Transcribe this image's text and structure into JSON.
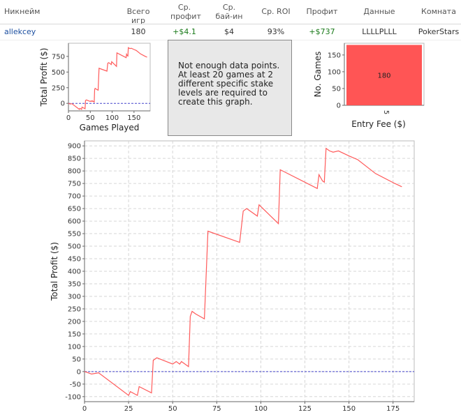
{
  "table": {
    "headers": [
      "Никнейм",
      "Всего игр",
      "Ср. профит",
      "Ср. бай-ин",
      "Ср. ROI",
      "Профит",
      "Данные",
      "Комната"
    ],
    "row": {
      "nickname": "allekcey",
      "total_games": "180",
      "avg_profit": "+$4.1",
      "avg_buyin": "$4",
      "avg_roi": "93%",
      "profit": "+$737",
      "data": "LLLLPLLL",
      "room": "PokerStars"
    }
  },
  "message": "Not enough data points. At least 20 games at 2 different specific stake levels are required to create this graph.",
  "colors": {
    "line": "#ff5a5a",
    "bar": "#ff5555",
    "zero_line": "#4444cc",
    "grid": "#d6d6d6"
  },
  "chart_data": [
    {
      "type": "line",
      "xlabel": "Games Played",
      "ylabel": "Total Profit ($)",
      "xlim": [
        0,
        187
      ],
      "ylim": [
        -120,
        960
      ],
      "xticks": [
        0,
        50,
        100,
        150
      ],
      "yticks": [
        0,
        250,
        500,
        750
      ],
      "zero_line": true,
      "series": [
        {
          "x": [
            0,
            4,
            8,
            25,
            26,
            30,
            31,
            38,
            39,
            41,
            50,
            52,
            54,
            55,
            59,
            60,
            61,
            63,
            68,
            70,
            88,
            90,
            92,
            98,
            99,
            110,
            111,
            132,
            133,
            135,
            136,
            137,
            139,
            141,
            144,
            150,
            155,
            165,
            176,
            180
          ],
          "y": [
            0,
            -10,
            -5,
            -95,
            -80,
            -95,
            -60,
            -85,
            45,
            55,
            30,
            40,
            30,
            40,
            20,
            220,
            240,
            230,
            210,
            560,
            515,
            640,
            650,
            620,
            665,
            590,
            805,
            730,
            785,
            760,
            755,
            890,
            880,
            875,
            880,
            860,
            845,
            790,
            750,
            737
          ]
        }
      ]
    },
    {
      "type": "bar",
      "xlabel": "Entry Fee ($)",
      "ylabel": "No. Games",
      "categories": [
        "5"
      ],
      "values": [
        180
      ],
      "data_labels": [
        "180"
      ],
      "ylim": [
        0,
        185
      ],
      "yticks": [
        0,
        50,
        100,
        150
      ]
    },
    {
      "type": "line",
      "xlabel": "",
      "ylabel": "Total Profit ($)",
      "xlim": [
        0,
        187
      ],
      "ylim": [
        -120,
        920
      ],
      "xticks": [
        0,
        25,
        50,
        75,
        100,
        125,
        150,
        175
      ],
      "yticks": [
        -100,
        -50,
        0,
        50,
        100,
        150,
        200,
        250,
        300,
        350,
        400,
        450,
        500,
        550,
        600,
        650,
        700,
        750,
        800,
        850,
        900
      ],
      "grid": true,
      "zero_line": true,
      "series": [
        {
          "x": [
            0,
            4,
            8,
            25,
            26,
            30,
            31,
            38,
            39,
            41,
            50,
            52,
            54,
            55,
            59,
            60,
            61,
            63,
            68,
            70,
            88,
            90,
            92,
            98,
            99,
            110,
            111,
            132,
            133,
            135,
            136,
            137,
            139,
            141,
            144,
            150,
            155,
            165,
            176,
            180
          ],
          "y": [
            0,
            -10,
            -5,
            -95,
            -80,
            -95,
            -60,
            -85,
            45,
            55,
            30,
            40,
            30,
            40,
            20,
            220,
            240,
            230,
            210,
            560,
            515,
            640,
            650,
            620,
            665,
            590,
            805,
            730,
            785,
            760,
            755,
            890,
            880,
            875,
            880,
            860,
            845,
            790,
            750,
            737
          ]
        }
      ]
    }
  ]
}
